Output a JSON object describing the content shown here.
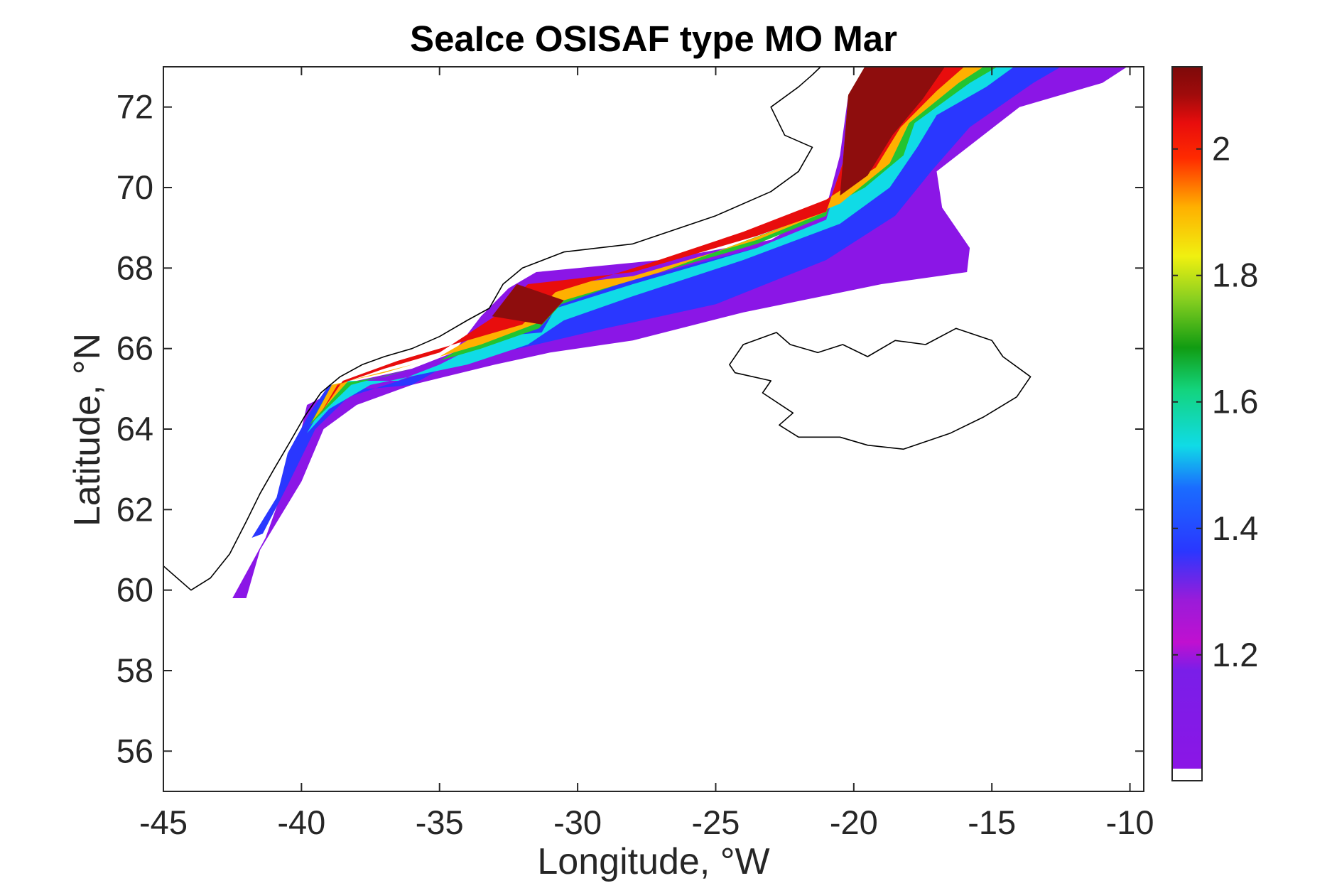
{
  "title": "SeaIce OSISAF type MO Mar",
  "xlabel": "Longitude, °W",
  "ylabel": "Latitude, °N",
  "x_ticks": [
    {
      "value": -45,
      "label": "-45"
    },
    {
      "value": -40,
      "label": "-40"
    },
    {
      "value": -35,
      "label": "-35"
    },
    {
      "value": -30,
      "label": "-30"
    },
    {
      "value": -25,
      "label": "-25"
    },
    {
      "value": -20,
      "label": "-20"
    },
    {
      "value": -15,
      "label": "-15"
    },
    {
      "value": -10,
      "label": "-10"
    }
  ],
  "y_ticks": [
    {
      "value": 56,
      "label": "56"
    },
    {
      "value": 58,
      "label": "58"
    },
    {
      "value": 60,
      "label": "60"
    },
    {
      "value": 62,
      "label": "62"
    },
    {
      "value": 64,
      "label": "64"
    },
    {
      "value": 66,
      "label": "66"
    },
    {
      "value": 68,
      "label": "68"
    },
    {
      "value": 70,
      "label": "70"
    },
    {
      "value": 72,
      "label": "72"
    }
  ],
  "colorbar_ticks": [
    {
      "value": 1.2,
      "label": "1.2"
    },
    {
      "value": 1.4,
      "label": "1.4"
    },
    {
      "value": 1.6,
      "label": "1.6"
    },
    {
      "value": 1.8,
      "label": "1.8"
    },
    {
      "value": 2,
      "label": "2"
    }
  ],
  "chart_data": {
    "type": "heatmap",
    "title": "SeaIce OSISAF type MO Mar",
    "xlabel": "Longitude, °W",
    "ylabel": "Latitude, °N",
    "xlim": [
      -45,
      -9.5
    ],
    "ylim": [
      55,
      73
    ],
    "clim": [
      1.02,
      2.13
    ],
    "colormap": "jet-like (purple - blue - cyan - green - yellow - red - dark red)",
    "colorbar_placement": "right",
    "grid": false,
    "ice_field_contours": [
      {
        "value": 1.05,
        "color": "#8b16e6",
        "polygon": [
          [
            -42.5,
            59.8
          ],
          [
            -41.3,
            61.3
          ],
          [
            -40.2,
            63.4
          ],
          [
            -39.8,
            64.6
          ],
          [
            -38,
            65.2
          ],
          [
            -36,
            65.5
          ],
          [
            -34.5,
            65.9
          ],
          [
            -33.5,
            66.8
          ],
          [
            -32.5,
            67.5
          ],
          [
            -31.5,
            67.9
          ],
          [
            -27,
            68.2
          ],
          [
            -23,
            68.7
          ],
          [
            -21,
            69.5
          ],
          [
            -20.5,
            70.8
          ],
          [
            -20.2,
            72.3
          ],
          [
            -19.6,
            73
          ],
          [
            -10.1,
            73
          ],
          [
            -11,
            72.6
          ],
          [
            -14,
            72
          ],
          [
            -17,
            70.4
          ],
          [
            -16.8,
            69.5
          ],
          [
            -15.8,
            68.5
          ],
          [
            -15.9,
            67.9
          ],
          [
            -19,
            67.6
          ],
          [
            -24,
            66.9
          ],
          [
            -28,
            66.2
          ],
          [
            -31,
            65.9
          ],
          [
            -33,
            65.6
          ],
          [
            -36,
            65.1
          ],
          [
            -38,
            64.6
          ],
          [
            -39.2,
            64
          ],
          [
            -40,
            62.7
          ],
          [
            -41.5,
            61
          ],
          [
            -42,
            59.8
          ]
        ]
      },
      {
        "value": 1.3,
        "color": "#2a37ff",
        "polygon": [
          [
            -41.8,
            61.3
          ],
          [
            -40.9,
            62.3
          ],
          [
            -40.5,
            63.4
          ],
          [
            -39.7,
            64.4
          ],
          [
            -39,
            65.1
          ],
          [
            -37.5,
            65
          ],
          [
            -36,
            65.1
          ],
          [
            -34.7,
            65.6
          ],
          [
            -33,
            66.4
          ],
          [
            -31.5,
            67.3
          ],
          [
            -28,
            67.7
          ],
          [
            -23.5,
            68.5
          ],
          [
            -21,
            69.2
          ],
          [
            -20.4,
            70.6
          ],
          [
            -20.2,
            72.3
          ],
          [
            -19.6,
            73
          ],
          [
            -12.5,
            73
          ],
          [
            -13.5,
            72.6
          ],
          [
            -15.8,
            71.5
          ],
          [
            -17.2,
            70.4
          ],
          [
            -18.5,
            69.3
          ],
          [
            -21,
            68.2
          ],
          [
            -25,
            67.1
          ],
          [
            -29,
            66.5
          ],
          [
            -31.5,
            66.1
          ],
          [
            -33.5,
            65.8
          ],
          [
            -36,
            65.3
          ],
          [
            -38.3,
            64.8
          ],
          [
            -39.5,
            64
          ],
          [
            -40.5,
            62.6
          ],
          [
            -41.4,
            61.4
          ]
        ]
      },
      {
        "value": 1.5,
        "color": "#10dbe6",
        "polygon": [
          [
            -39.8,
            63.9
          ],
          [
            -39.2,
            64.6
          ],
          [
            -38.5,
            65.2
          ],
          [
            -36.5,
            65.2
          ],
          [
            -35,
            65.6
          ],
          [
            -33,
            66.3
          ],
          [
            -31.3,
            66.4
          ],
          [
            -30.8,
            67
          ],
          [
            -28,
            67.6
          ],
          [
            -23.5,
            68.5
          ],
          [
            -21,
            69.2
          ],
          [
            -20.4,
            70.6
          ],
          [
            -20.2,
            72.3
          ],
          [
            -19.6,
            73
          ],
          [
            -14.2,
            73
          ],
          [
            -15.2,
            72.5
          ],
          [
            -17,
            71.8
          ],
          [
            -17.7,
            71
          ],
          [
            -18.7,
            70
          ],
          [
            -20.5,
            69.1
          ],
          [
            -24,
            68.2
          ],
          [
            -28,
            67.3
          ],
          [
            -30.5,
            66.7
          ],
          [
            -31.8,
            66.1
          ],
          [
            -34,
            65.6
          ],
          [
            -37.5,
            65.1
          ],
          [
            -39,
            64.5
          ]
        ]
      },
      {
        "value": 1.7,
        "color": "#22c431",
        "polygon": [
          [
            -39.7,
            64.1
          ],
          [
            -38.9,
            65.1
          ],
          [
            -37,
            65.3
          ],
          [
            -35,
            65.7
          ],
          [
            -33,
            66.5
          ],
          [
            -31.6,
            67.3
          ],
          [
            -28,
            67.7
          ],
          [
            -23.5,
            68.6
          ],
          [
            -21,
            69.3
          ],
          [
            -20.4,
            70.6
          ],
          [
            -20.2,
            72.3
          ],
          [
            -19.6,
            73
          ],
          [
            -14.8,
            73
          ],
          [
            -15.8,
            72.6
          ],
          [
            -17.8,
            71.6
          ],
          [
            -18.2,
            70.8
          ],
          [
            -19.6,
            70
          ],
          [
            -21.5,
            69.3
          ],
          [
            -25,
            68.4
          ],
          [
            -28.5,
            67.6
          ],
          [
            -30.6,
            67.1
          ],
          [
            -31.4,
            66.5
          ],
          [
            -33.5,
            66
          ],
          [
            -36,
            65.5
          ],
          [
            -38.2,
            65.1
          ]
        ]
      },
      {
        "value": 1.9,
        "color": "#ffb000",
        "polygon": [
          [
            -39.6,
            64.2
          ],
          [
            -38.9,
            65.1
          ],
          [
            -37,
            65.4
          ],
          [
            -35,
            65.8
          ],
          [
            -33,
            66.6
          ],
          [
            -31.7,
            67.5
          ],
          [
            -28,
            67.8
          ],
          [
            -23.5,
            68.7
          ],
          [
            -21,
            69.4
          ],
          [
            -20.4,
            70.6
          ],
          [
            -20.2,
            72.3
          ],
          [
            -19.6,
            73
          ],
          [
            -15.3,
            73
          ],
          [
            -16.2,
            72.6
          ],
          [
            -18,
            71.6
          ],
          [
            -18.7,
            70.6
          ],
          [
            -20.5,
            69.6
          ],
          [
            -23,
            68.9
          ],
          [
            -27,
            67.9
          ],
          [
            -30.5,
            67.2
          ],
          [
            -31.2,
            66.7
          ],
          [
            -33.5,
            66.1
          ],
          [
            -36,
            65.6
          ],
          [
            -38.3,
            65.2
          ]
        ]
      },
      {
        "value": 2.05,
        "color": "#e80d0d",
        "polygon": [
          [
            -39.3,
            64.4
          ],
          [
            -38.7,
            65.1
          ],
          [
            -37,
            65.5
          ],
          [
            -35,
            65.9
          ],
          [
            -33,
            66.8
          ],
          [
            -31.8,
            67.6
          ],
          [
            -28,
            67.9
          ],
          [
            -23.5,
            68.8
          ],
          [
            -21,
            69.4
          ],
          [
            -20.4,
            70.6
          ],
          [
            -20.2,
            72.3
          ],
          [
            -19.6,
            73
          ],
          [
            -16,
            73
          ],
          [
            -17,
            72.4
          ],
          [
            -18.3,
            71.5
          ],
          [
            -19.2,
            70.5
          ],
          [
            -21,
            69.7
          ],
          [
            -24,
            68.9
          ],
          [
            -27.5,
            68.1
          ],
          [
            -30.8,
            67.4
          ],
          [
            -32,
            66.6
          ],
          [
            -34,
            66.2
          ],
          [
            -36.5,
            65.7
          ],
          [
            -38.5,
            65.2
          ]
        ]
      },
      {
        "value": 2.13,
        "color": "#8e0d0d",
        "polygon": [
          [
            -20.4,
            70.6
          ],
          [
            -20.2,
            72.3
          ],
          [
            -19.6,
            73
          ],
          [
            -16.7,
            73
          ],
          [
            -17.5,
            72.2
          ],
          [
            -18.6,
            71.3
          ],
          [
            -19.5,
            70.3
          ],
          [
            -20.5,
            69.8
          ]
        ]
      },
      {
        "value": 2.13,
        "color": "#8e0d0d",
        "polygon": [
          [
            -33.1,
            66.8
          ],
          [
            -32.2,
            67.6
          ],
          [
            -30.5,
            67.2
          ],
          [
            -31.3,
            66.6
          ]
        ]
      }
    ],
    "land_outlines": [
      {
        "name": "Greenland",
        "polygon": [
          [
            -45,
            60.6
          ],
          [
            -44,
            60
          ],
          [
            -43.3,
            60.3
          ],
          [
            -42.6,
            60.9
          ],
          [
            -42,
            61.7
          ],
          [
            -41.5,
            62.4
          ],
          [
            -41,
            63
          ],
          [
            -40.4,
            63.7
          ],
          [
            -39.9,
            64.3
          ],
          [
            -39.3,
            64.9
          ],
          [
            -38.6,
            65.3
          ],
          [
            -37.8,
            65.6
          ],
          [
            -37,
            65.8
          ],
          [
            -36,
            66
          ],
          [
            -35,
            66.3
          ],
          [
            -34,
            66.7
          ],
          [
            -33.2,
            67
          ],
          [
            -32.7,
            67.6
          ],
          [
            -32,
            68
          ],
          [
            -30.5,
            68.4
          ],
          [
            -28,
            68.6
          ],
          [
            -25,
            69.3
          ],
          [
            -23,
            69.9
          ],
          [
            -22,
            70.4
          ],
          [
            -21.5,
            71
          ],
          [
            -22.5,
            71.3
          ],
          [
            -23,
            72
          ],
          [
            -22,
            72.5
          ],
          [
            -21.5,
            72.8
          ],
          [
            -21.2,
            73
          ],
          [
            -45,
            73
          ]
        ]
      },
      {
        "name": "Iceland",
        "polygon": [
          [
            -24.5,
            65.6
          ],
          [
            -24,
            66.1
          ],
          [
            -22.8,
            66.4
          ],
          [
            -22.3,
            66.1
          ],
          [
            -21.3,
            65.9
          ],
          [
            -20.4,
            66.1
          ],
          [
            -19.5,
            65.8
          ],
          [
            -18.5,
            66.2
          ],
          [
            -17.4,
            66.1
          ],
          [
            -16.3,
            66.5
          ],
          [
            -15,
            66.2
          ],
          [
            -14.6,
            65.8
          ],
          [
            -13.6,
            65.3
          ],
          [
            -14.1,
            64.8
          ],
          [
            -15.3,
            64.3
          ],
          [
            -16.5,
            63.9
          ],
          [
            -18.2,
            63.5
          ],
          [
            -19.5,
            63.6
          ],
          [
            -20.5,
            63.8
          ],
          [
            -22,
            63.8
          ],
          [
            -22.7,
            64.1
          ],
          [
            -22.2,
            64.4
          ],
          [
            -23.3,
            64.9
          ],
          [
            -23,
            65.2
          ],
          [
            -24.3,
            65.4
          ]
        ]
      }
    ],
    "colors": {
      "background": "#ffffff",
      "axes": "#262626",
      "coastline": "#000000"
    }
  }
}
